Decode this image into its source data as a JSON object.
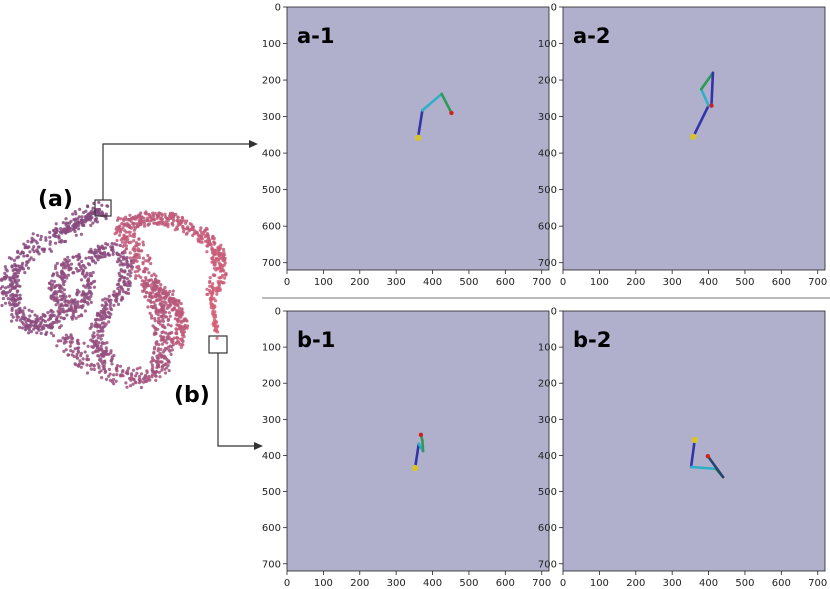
{
  "regions": [
    {
      "id": "a",
      "label": "(a)"
    },
    {
      "id": "b",
      "label": "(b)"
    }
  ],
  "axes": {
    "x_ticks": [
      0,
      100,
      200,
      300,
      400,
      500,
      600,
      700
    ],
    "y_ticks": [
      0,
      100,
      200,
      300,
      400,
      500,
      600,
      700
    ],
    "xlim": [
      0,
      720
    ],
    "ylim": [
      720,
      0
    ],
    "panel_color": "#b0b0cd"
  },
  "panels": [
    {
      "id": "a-1",
      "label": "a-1",
      "joints": [
        [
          360,
          358
        ],
        [
          372,
          283
        ],
        [
          425,
          238
        ],
        [
          452,
          290
        ]
      ],
      "segment_colors": [
        "#3333aa",
        "#30b0c8",
        "#2e9a55"
      ],
      "start_color": "#d6c42a",
      "end_color": "#cc2222"
    },
    {
      "id": "a-2",
      "label": "a-2",
      "joints": [
        [
          358,
          355
        ],
        [
          400,
          270
        ],
        [
          380,
          225
        ],
        [
          412,
          180
        ],
        [
          408,
          270
        ]
      ],
      "segment_colors": [
        "#3333aa",
        "#30b0c8",
        "#2e9a55",
        "#3333aa"
      ],
      "start_color": "#d6c42a",
      "end_color": "#cc2222"
    },
    {
      "id": "b-1",
      "label": "b-1",
      "joints": [
        [
          352,
          435
        ],
        [
          362,
          368
        ],
        [
          374,
          388
        ],
        [
          372,
          358
        ],
        [
          368,
          343
        ]
      ],
      "segment_colors": [
        "#3333aa",
        "#30b0c8",
        "#2e9a55",
        "#2e9a55"
      ],
      "start_color": "#d6c42a",
      "end_color": "#cc2222"
    },
    {
      "id": "b-2",
      "label": "b-2",
      "joints": [
        [
          362,
          357
        ],
        [
          352,
          432
        ],
        [
          420,
          437
        ],
        [
          440,
          460
        ],
        [
          398,
          402
        ]
      ],
      "segment_colors": [
        "#3333aa",
        "#30b0c8",
        "#2e9a55",
        "#26446e"
      ],
      "start_color": "#d6c42a",
      "end_color": "#cc2222"
    }
  ]
}
